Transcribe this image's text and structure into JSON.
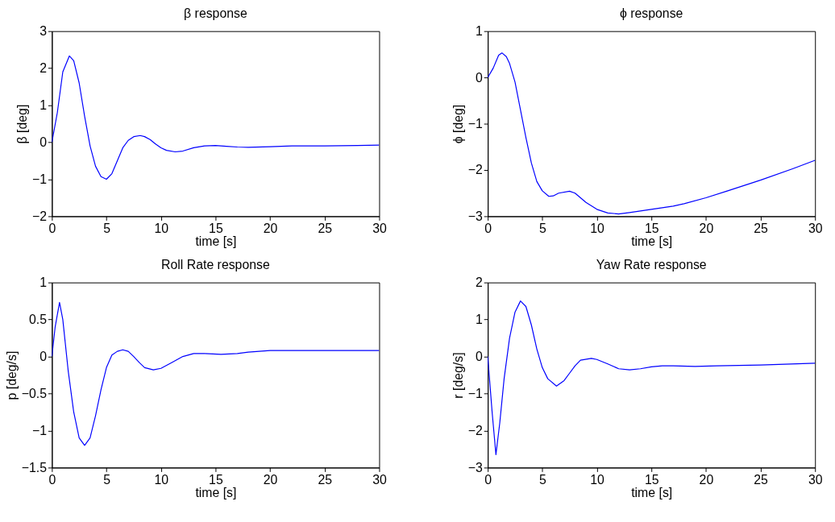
{
  "chart_data": [
    {
      "type": "line",
      "title": "β response",
      "xlabel": "time [s]",
      "ylabel": "β [deg]",
      "xlim": [
        0,
        30
      ],
      "xticks": [
        0,
        5,
        10,
        15,
        20,
        25,
        30
      ],
      "ylim": [
        -2,
        3
      ],
      "yticks": [
        -2,
        -1,
        0,
        1,
        2,
        3
      ],
      "grid": false,
      "line_style": "solid",
      "series": [
        {
          "color": "#0000ff",
          "x": [
            0,
            0.5,
            1,
            1.6,
            2,
            2.5,
            3,
            3.5,
            4,
            4.5,
            5,
            5.5,
            6,
            6.5,
            7,
            7.5,
            8.1,
            8.5,
            9,
            9.5,
            10,
            10.5,
            11.3,
            12,
            13,
            14,
            15,
            16,
            17,
            18,
            20,
            22,
            25,
            28,
            30
          ],
          "values": [
            0,
            0.8,
            1.9,
            2.33,
            2.2,
            1.6,
            0.7,
            -0.1,
            -0.65,
            -0.93,
            -1.0,
            -0.85,
            -0.5,
            -0.15,
            0.05,
            0.15,
            0.18,
            0.15,
            0.07,
            -0.05,
            -0.15,
            -0.22,
            -0.26,
            -0.24,
            -0.15,
            -0.1,
            -0.09,
            -0.11,
            -0.13,
            -0.14,
            -0.12,
            -0.1,
            -0.1,
            -0.09,
            -0.08
          ]
        }
      ]
    },
    {
      "type": "line",
      "title": "ϕ response",
      "xlabel": "time [s]",
      "ylabel": "ϕ [deg]",
      "xlim": [
        0,
        30
      ],
      "xticks": [
        0,
        5,
        10,
        15,
        20,
        25,
        30
      ],
      "ylim": [
        -3,
        1
      ],
      "yticks": [
        -3,
        -2,
        -1,
        0,
        1
      ],
      "grid": false,
      "line_style": "solid",
      "series": [
        {
          "color": "#0000ff",
          "x": [
            0,
            0.5,
            1,
            1.3,
            1.7,
            2,
            2.5,
            3,
            3.5,
            4,
            4.5,
            5,
            5.6,
            6,
            6.5,
            7.5,
            8,
            8.5,
            9,
            10,
            11,
            12,
            13,
            15,
            17,
            18,
            20,
            22,
            25,
            28,
            30
          ],
          "values": [
            0,
            0.2,
            0.48,
            0.53,
            0.45,
            0.3,
            -0.1,
            -0.7,
            -1.3,
            -1.85,
            -2.25,
            -2.45,
            -2.57,
            -2.56,
            -2.5,
            -2.46,
            -2.5,
            -2.6,
            -2.7,
            -2.85,
            -2.93,
            -2.95,
            -2.92,
            -2.85,
            -2.78,
            -2.73,
            -2.6,
            -2.45,
            -2.22,
            -1.97,
            -1.79
          ]
        }
      ]
    },
    {
      "type": "line",
      "title": "Roll Rate response",
      "xlabel": "time [s]",
      "ylabel": "p [deg/s]",
      "xlim": [
        0,
        30
      ],
      "xticks": [
        0,
        5,
        10,
        15,
        20,
        25,
        30
      ],
      "ylim": [
        -1.5,
        1
      ],
      "yticks": [
        -1.5,
        -1,
        -0.5,
        0,
        0.5,
        1
      ],
      "grid": false,
      "line_style": "solid",
      "series": [
        {
          "color": "#0000ff",
          "x": [
            0,
            0.3,
            0.7,
            1,
            1.5,
            2,
            2.5,
            3,
            3.5,
            4,
            4.5,
            5,
            5.5,
            6,
            6.5,
            7,
            7.5,
            8,
            8.5,
            9.3,
            10,
            11,
            12,
            13,
            14,
            15.5,
            17,
            18,
            20,
            25,
            30
          ],
          "values": [
            0,
            0.4,
            0.73,
            0.5,
            -0.2,
            -0.75,
            -1.1,
            -1.2,
            -1.1,
            -0.8,
            -0.45,
            -0.15,
            0.02,
            0.07,
            0.09,
            0.07,
            0.0,
            -0.08,
            -0.15,
            -0.18,
            -0.16,
            -0.08,
            0.0,
            0.04,
            0.04,
            0.03,
            0.04,
            0.06,
            0.08,
            0.08,
            0.08
          ]
        }
      ]
    },
    {
      "type": "line",
      "title": "Yaw Rate response",
      "xlabel": "time [s]",
      "ylabel": "r [deg/s]",
      "xlim": [
        0,
        30
      ],
      "xticks": [
        0,
        5,
        10,
        15,
        20,
        25,
        30
      ],
      "ylim": [
        -3,
        2
      ],
      "yticks": [
        -3,
        -2,
        -1,
        0,
        1,
        2
      ],
      "grid": false,
      "line_style": "solid",
      "series": [
        {
          "color": "#0000ff",
          "x": [
            0,
            0.4,
            0.75,
            1.1,
            1.5,
            2,
            2.5,
            3,
            3.5,
            4,
            4.5,
            5,
            5.5,
            6.3,
            7,
            7.5,
            8,
            8.5,
            9.5,
            10,
            11,
            12,
            13,
            14,
            15,
            16,
            17,
            19,
            21,
            25,
            30
          ],
          "values": [
            0,
            -1.5,
            -2.65,
            -1.8,
            -0.6,
            0.5,
            1.2,
            1.5,
            1.35,
            0.85,
            0.2,
            -0.3,
            -0.6,
            -0.8,
            -0.65,
            -0.45,
            -0.25,
            -0.1,
            -0.05,
            -0.08,
            -0.2,
            -0.33,
            -0.36,
            -0.33,
            -0.28,
            -0.25,
            -0.25,
            -0.27,
            -0.25,
            -0.23,
            -0.18
          ]
        }
      ]
    }
  ]
}
